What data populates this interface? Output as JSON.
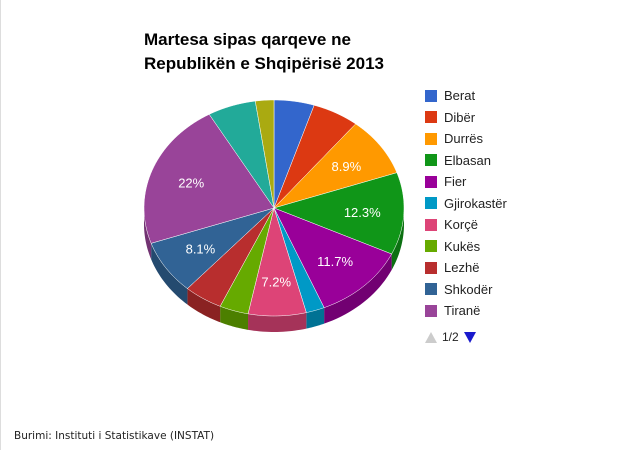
{
  "chart_data": {
    "type": "pie",
    "style": "3d",
    "title": "Martesa sipas qarqeve ne Republikën e Shqipërisë 2013",
    "legend_position": "right",
    "legend_page": "1/2",
    "series": [
      {
        "name": "Berat",
        "value": 5.0,
        "color": "#3366cc"
      },
      {
        "name": "Dibër",
        "value": 5.8,
        "color": "#dc3912"
      },
      {
        "name": "Durrës",
        "value": 8.9,
        "color": "#ff9900",
        "label": "8.9%"
      },
      {
        "name": "Elbasan",
        "value": 12.3,
        "color": "#109618",
        "label": "12.3%"
      },
      {
        "name": "Fier",
        "value": 11.7,
        "color": "#990099",
        "label": "11.7%"
      },
      {
        "name": "Gjirokastër",
        "value": 2.3,
        "color": "#0099c6"
      },
      {
        "name": "Korçë",
        "value": 7.2,
        "color": "#dd4477",
        "label": "7.2%"
      },
      {
        "name": "Kukës",
        "value": 3.6,
        "color": "#66aa00"
      },
      {
        "name": "Lezhë",
        "value": 4.8,
        "color": "#b82e2e"
      },
      {
        "name": "Shkodër",
        "value": 8.1,
        "color": "#316395",
        "label": "8.1%"
      },
      {
        "name": "Tiranë",
        "value": 22.0,
        "color": "#994499",
        "label": "22%"
      },
      {
        "name": "",
        "value": 6.0,
        "color": "#22aa99"
      },
      {
        "name": "",
        "value": 2.3,
        "color": "#aaaa11"
      }
    ]
  },
  "source": "Burimi: Instituti i Statistikave (INSTAT)"
}
